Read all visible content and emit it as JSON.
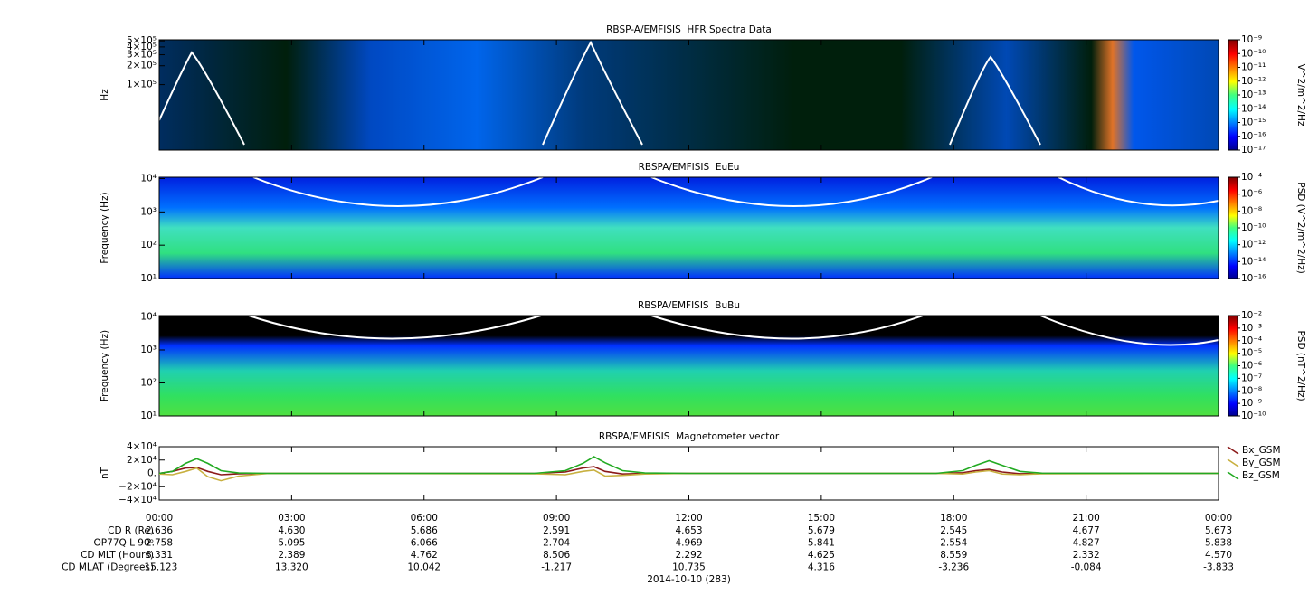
{
  "chart_data": [
    {
      "type": "spectrogram",
      "title": "RBSP-A/EMFISIS  HFR Spectra Data",
      "y_label": "Hz",
      "log_y": true,
      "ylim": [
        9000,
        520000
      ],
      "yticks": [
        {
          "value": 100000,
          "label": "1×10⁵"
        },
        {
          "value": 200000,
          "label": "2×10⁵"
        },
        {
          "value": 300000,
          "label": "3×10⁵"
        },
        {
          "value": 400000,
          "label": "4×10⁵"
        },
        {
          "value": 500000,
          "label": "5×10⁵"
        }
      ],
      "colorbar": {
        "label": "V^2/m^2/Hz",
        "log": true,
        "clim": [
          1e-17,
          1e-09
        ],
        "ticks": [
          {
            "value": 1e-09,
            "label": "10⁻⁹"
          },
          {
            "value": 1e-10,
            "label": "10⁻¹⁰"
          },
          {
            "value": 1e-11,
            "label": "10⁻¹¹"
          },
          {
            "value": 1e-12,
            "label": "10⁻¹²"
          },
          {
            "value": 1e-13,
            "label": "10⁻¹³"
          },
          {
            "value": 1e-14,
            "label": "10⁻¹⁴"
          },
          {
            "value": 1e-15,
            "label": "10⁻¹⁵"
          },
          {
            "value": 1e-16,
            "label": "10⁻¹⁶"
          },
          {
            "value": 1e-17,
            "label": "10⁻¹⁷"
          }
        ]
      }
    },
    {
      "type": "spectrogram",
      "title": "RBSPA/EMFISIS  EuEu",
      "y_label": "Frequency (Hz)",
      "log_y": true,
      "ylim": [
        10,
        11000
      ],
      "yticks": [
        {
          "value": 10,
          "label": "10¹"
        },
        {
          "value": 100,
          "label": "10²"
        },
        {
          "value": 1000,
          "label": "10³"
        },
        {
          "value": 10000,
          "label": "10⁴"
        }
      ],
      "colorbar": {
        "label": "PSD (V^2/m^2/Hz)",
        "log": true,
        "clim": [
          1e-16,
          0.0001
        ],
        "ticks": [
          {
            "value": 0.0001,
            "label": "10⁻⁴"
          },
          {
            "value": 1e-06,
            "label": "10⁻⁶"
          },
          {
            "value": 1e-08,
            "label": "10⁻⁸"
          },
          {
            "value": 1e-10,
            "label": "10⁻¹⁰"
          },
          {
            "value": 1e-12,
            "label": "10⁻¹²"
          },
          {
            "value": 1e-14,
            "label": "10⁻¹⁴"
          },
          {
            "value": 1e-16,
            "label": "10⁻¹⁶"
          }
        ]
      }
    },
    {
      "type": "spectrogram",
      "title": "RBSPA/EMFISIS  BuBu",
      "y_label": "Frequency (Hz)",
      "log_y": true,
      "ylim": [
        10,
        11000
      ],
      "yticks": [
        {
          "value": 10,
          "label": "10¹"
        },
        {
          "value": 100,
          "label": "10²"
        },
        {
          "value": 1000,
          "label": "10³"
        },
        {
          "value": 10000,
          "label": "10⁴"
        }
      ],
      "colorbar": {
        "label": "PSD (nT^2/Hz)",
        "log": true,
        "clim": [
          1e-10,
          0.01
        ],
        "ticks": [
          {
            "value": 0.01,
            "label": "10⁻²"
          },
          {
            "value": 0.001,
            "label": "10⁻³"
          },
          {
            "value": 0.0001,
            "label": "10⁻⁴"
          },
          {
            "value": 1e-05,
            "label": "10⁻⁵"
          },
          {
            "value": 1e-06,
            "label": "10⁻⁶"
          },
          {
            "value": 1e-07,
            "label": "10⁻⁷"
          },
          {
            "value": 1e-08,
            "label": "10⁻⁸"
          },
          {
            "value": 1e-09,
            "label": "10⁻⁹"
          },
          {
            "value": 1e-10,
            "label": "10⁻¹⁰"
          }
        ]
      }
    },
    {
      "type": "line",
      "title": "RBSPA/EMFISIS  Magnetometer vector",
      "y_label": "nT",
      "ylim": [
        -40000,
        40000
      ],
      "yticks": [
        {
          "value": -40000,
          "label": "−4×10⁴"
        },
        {
          "value": -20000,
          "label": "−2×10⁴"
        },
        {
          "value": 0,
          "label": "0."
        },
        {
          "value": 20000,
          "label": "2×10⁴"
        },
        {
          "value": 40000,
          "label": "4×10⁴"
        }
      ],
      "xlim": [
        0,
        24
      ],
      "xticks": [
        {
          "value": 0,
          "label": "00:00"
        },
        {
          "value": 3,
          "label": "03:00"
        },
        {
          "value": 6,
          "label": "06:00"
        },
        {
          "value": 9,
          "label": "09:00"
        },
        {
          "value": 12,
          "label": "12:00"
        },
        {
          "value": 15,
          "label": "15:00"
        },
        {
          "value": 18,
          "label": "18:00"
        },
        {
          "value": 21,
          "label": "21:00"
        },
        {
          "value": 24,
          "label": "00:00"
        }
      ],
      "x": [
        0,
        0.3,
        0.6,
        0.85,
        1.1,
        1.4,
        1.8,
        2.5,
        8.5,
        9.2,
        9.6,
        9.85,
        10.1,
        10.5,
        11,
        12,
        17.6,
        18.2,
        18.5,
        18.8,
        19.1,
        19.5,
        20,
        24
      ],
      "series": [
        {
          "name": "Bx_GSM",
          "color": "#8b1a1a",
          "values": [
            0,
            3000,
            8000,
            9000,
            3000,
            -2000,
            -500,
            0,
            0,
            2000,
            8000,
            10000,
            3000,
            -1000,
            0,
            0,
            0,
            1000,
            4000,
            6000,
            2000,
            -500,
            0,
            0
          ]
        },
        {
          "name": "By_GSM",
          "color": "#c8b040",
          "values": [
            -1000,
            -2000,
            3000,
            8000,
            -5000,
            -11000,
            -4000,
            0,
            -500,
            -2000,
            3000,
            5000,
            -4000,
            -3000,
            -1000,
            0,
            0,
            -1000,
            2000,
            4000,
            -1000,
            -2000,
            -500,
            0
          ]
        },
        {
          "name": "Bz_GSM",
          "color": "#22aa22",
          "values": [
            0,
            3000,
            15000,
            22000,
            15000,
            4000,
            500,
            0,
            0,
            4000,
            15000,
            25000,
            16000,
            4000,
            500,
            0,
            0,
            4000,
            12000,
            19000,
            12000,
            3000,
            300,
            0
          ]
        }
      ],
      "ephemeris": [
        {
          "label": "CD R (Re)",
          "values": [
            "2.636",
            "4.630",
            "5.686",
            "2.591",
            "4.653",
            "5.679",
            "2.545",
            "4.677",
            "5.673"
          ]
        },
        {
          "label": "OP77Q L 90ᵒ",
          "values": [
            "2.758",
            "5.095",
            "6.066",
            "2.704",
            "4.969",
            "5.841",
            "2.554",
            "4.827",
            "5.838"
          ]
        },
        {
          "label": "CD MLT (Hours)",
          "values": [
            "8.331",
            "2.389",
            "4.762",
            "8.506",
            "2.292",
            "4.625",
            "8.559",
            "2.332",
            "4.570"
          ]
        },
        {
          "label": "CD MLAT (Degrees)",
          "values": [
            "-15.123",
            "13.320",
            "10.042",
            "-1.217",
            "10.735",
            "4.316",
            "-3.236",
            "-0.084",
            "-3.833"
          ]
        }
      ],
      "date": "2014-10-10 (283)"
    }
  ]
}
